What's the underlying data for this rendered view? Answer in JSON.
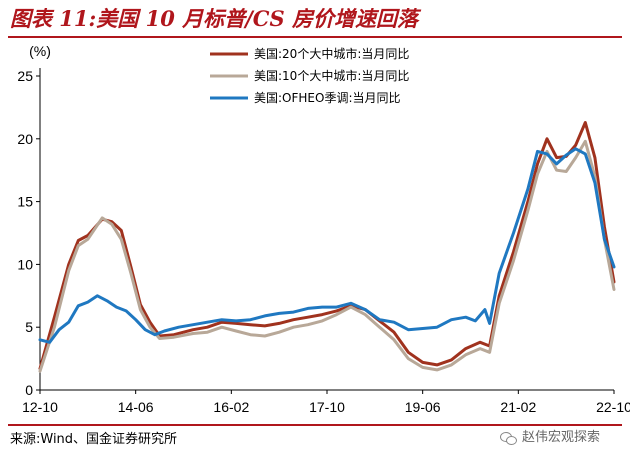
{
  "header": {
    "title": "图表 11:美国 10 月标普/CS 房价增速回落"
  },
  "footer": {
    "source": "来源:Wind、国金证券研究所",
    "watermark": "赵伟宏观探索"
  },
  "chart_data": {
    "type": "line",
    "ylabel": "(%)",
    "ylim": [
      0,
      25
    ],
    "yticks": [
      "0",
      "5",
      "10",
      "15",
      "20",
      "25"
    ],
    "xlim": [
      "2012-10",
      "2022-10"
    ],
    "xticks": [
      "12-10",
      "14-06",
      "16-02",
      "17-10",
      "19-06",
      "21-02",
      "22-10"
    ],
    "legend_position": "top-center",
    "series": [
      {
        "name": "美国:20个大中城市:当月同比",
        "color": "#a0321e",
        "points": [
          [
            "2012-10",
            1.7
          ],
          [
            "2013-01",
            5.8
          ],
          [
            "2013-04",
            10.0
          ],
          [
            "2013-06",
            11.9
          ],
          [
            "2013-08",
            12.3
          ],
          [
            "2013-11",
            13.6
          ],
          [
            "2014-01",
            13.4
          ],
          [
            "2014-03",
            12.7
          ],
          [
            "2014-05",
            9.8
          ],
          [
            "2014-07",
            6.8
          ],
          [
            "2014-09",
            5.4
          ],
          [
            "2014-11",
            4.3
          ],
          [
            "2015-02",
            4.4
          ],
          [
            "2015-06",
            4.8
          ],
          [
            "2015-09",
            5.0
          ],
          [
            "2015-12",
            5.4
          ],
          [
            "2016-03",
            5.3
          ],
          [
            "2016-06",
            5.2
          ],
          [
            "2016-09",
            5.1
          ],
          [
            "2016-12",
            5.3
          ],
          [
            "2017-03",
            5.6
          ],
          [
            "2017-06",
            5.8
          ],
          [
            "2017-09",
            6.0
          ],
          [
            "2017-12",
            6.3
          ],
          [
            "2018-03",
            6.7
          ],
          [
            "2018-06",
            6.4
          ],
          [
            "2018-09",
            5.5
          ],
          [
            "2018-12",
            4.6
          ],
          [
            "2019-03",
            3.0
          ],
          [
            "2019-06",
            2.2
          ],
          [
            "2019-09",
            2.0
          ],
          [
            "2019-12",
            2.4
          ],
          [
            "2020-03",
            3.3
          ],
          [
            "2020-06",
            3.8
          ],
          [
            "2020-08",
            3.5
          ],
          [
            "2020-10",
            7.5
          ],
          [
            "2021-01",
            11.0
          ],
          [
            "2021-04",
            15.0
          ],
          [
            "2021-06",
            18.0
          ],
          [
            "2021-08",
            20.0
          ],
          [
            "2021-10",
            18.5
          ],
          [
            "2021-12",
            18.6
          ],
          [
            "2022-02",
            19.5
          ],
          [
            "2022-04",
            21.3
          ],
          [
            "2022-06",
            18.5
          ],
          [
            "2022-08",
            13.0
          ],
          [
            "2022-10",
            8.6
          ]
        ]
      },
      {
        "name": "美国:10个大中城市:当月同比",
        "color": "#b8a898",
        "points": [
          [
            "2012-10",
            1.5
          ],
          [
            "2013-01",
            5.0
          ],
          [
            "2013-04",
            9.5
          ],
          [
            "2013-06",
            11.5
          ],
          [
            "2013-08",
            12.0
          ],
          [
            "2013-11",
            13.7
          ],
          [
            "2014-01",
            13.2
          ],
          [
            "2014-03",
            12.0
          ],
          [
            "2014-05",
            9.3
          ],
          [
            "2014-07",
            6.4
          ],
          [
            "2014-09",
            5.0
          ],
          [
            "2014-11",
            4.1
          ],
          [
            "2015-02",
            4.2
          ],
          [
            "2015-06",
            4.5
          ],
          [
            "2015-09",
            4.6
          ],
          [
            "2015-12",
            5.0
          ],
          [
            "2016-03",
            4.7
          ],
          [
            "2016-06",
            4.4
          ],
          [
            "2016-09",
            4.3
          ],
          [
            "2016-12",
            4.6
          ],
          [
            "2017-03",
            5.0
          ],
          [
            "2017-06",
            5.2
          ],
          [
            "2017-09",
            5.5
          ],
          [
            "2017-12",
            6.0
          ],
          [
            "2018-03",
            6.6
          ],
          [
            "2018-06",
            6.0
          ],
          [
            "2018-09",
            5.0
          ],
          [
            "2018-12",
            4.0
          ],
          [
            "2019-03",
            2.5
          ],
          [
            "2019-06",
            1.8
          ],
          [
            "2019-09",
            1.6
          ],
          [
            "2019-12",
            2.0
          ],
          [
            "2020-03",
            2.8
          ],
          [
            "2020-06",
            3.3
          ],
          [
            "2020-08",
            3.0
          ],
          [
            "2020-10",
            6.9
          ],
          [
            "2021-01",
            10.3
          ],
          [
            "2021-04",
            14.3
          ],
          [
            "2021-06",
            17.2
          ],
          [
            "2021-08",
            19.0
          ],
          [
            "2021-10",
            17.5
          ],
          [
            "2021-12",
            17.4
          ],
          [
            "2022-02",
            18.5
          ],
          [
            "2022-04",
            19.8
          ],
          [
            "2022-06",
            17.0
          ],
          [
            "2022-08",
            12.0
          ],
          [
            "2022-10",
            8.0
          ]
        ]
      },
      {
        "name": "美国:OFHEO季调:当月同比",
        "color": "#1f78c1",
        "points": [
          [
            "2012-10",
            4.0
          ],
          [
            "2012-12",
            3.8
          ],
          [
            "2013-02",
            4.8
          ],
          [
            "2013-04",
            5.4
          ],
          [
            "2013-06",
            6.7
          ],
          [
            "2013-08",
            7.0
          ],
          [
            "2013-10",
            7.5
          ],
          [
            "2013-12",
            7.1
          ],
          [
            "2014-02",
            6.6
          ],
          [
            "2014-04",
            6.3
          ],
          [
            "2014-06",
            5.6
          ],
          [
            "2014-08",
            4.8
          ],
          [
            "2014-10",
            4.4
          ],
          [
            "2014-12",
            4.7
          ],
          [
            "2015-03",
            5.0
          ],
          [
            "2015-06",
            5.2
          ],
          [
            "2015-09",
            5.4
          ],
          [
            "2015-12",
            5.6
          ],
          [
            "2016-03",
            5.5
          ],
          [
            "2016-06",
            5.6
          ],
          [
            "2016-09",
            5.9
          ],
          [
            "2016-12",
            6.1
          ],
          [
            "2017-03",
            6.2
          ],
          [
            "2017-06",
            6.5
          ],
          [
            "2017-09",
            6.6
          ],
          [
            "2017-12",
            6.6
          ],
          [
            "2018-03",
            6.9
          ],
          [
            "2018-06",
            6.4
          ],
          [
            "2018-09",
            5.6
          ],
          [
            "2018-12",
            5.4
          ],
          [
            "2019-03",
            4.8
          ],
          [
            "2019-06",
            4.9
          ],
          [
            "2019-09",
            5.0
          ],
          [
            "2019-12",
            5.6
          ],
          [
            "2020-03",
            5.8
          ],
          [
            "2020-05",
            5.5
          ],
          [
            "2020-07",
            6.4
          ],
          [
            "2020-08",
            5.3
          ],
          [
            "2020-10",
            9.3
          ],
          [
            "2021-01",
            12.5
          ],
          [
            "2021-04",
            16.0
          ],
          [
            "2021-06",
            19.0
          ],
          [
            "2021-08",
            18.8
          ],
          [
            "2021-10",
            18.0
          ],
          [
            "2021-12",
            18.7
          ],
          [
            "2022-02",
            19.2
          ],
          [
            "2022-04",
            18.8
          ],
          [
            "2022-06",
            16.5
          ],
          [
            "2022-08",
            12.0
          ],
          [
            "2022-10",
            9.8
          ]
        ]
      }
    ]
  }
}
